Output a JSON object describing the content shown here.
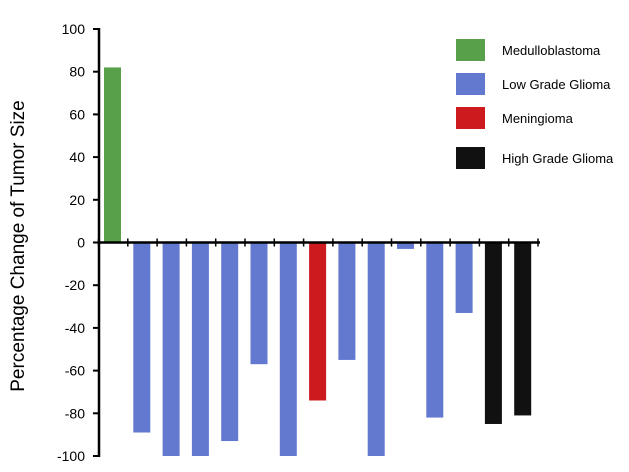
{
  "chart_data": {
    "type": "bar",
    "title": "",
    "xlabel": "",
    "ylabel": "Percentage Change of Tumor Size",
    "ylim": [
      -100,
      100
    ],
    "yticks": [
      100,
      80,
      60,
      40,
      20,
      0,
      -20,
      -40,
      -60,
      -80,
      -100
    ],
    "ytick_labels": [
      "100",
      "80",
      "60",
      "40",
      "20",
      "0",
      "-20",
      "-40",
      "-60",
      "-80",
      "-100"
    ],
    "grid": false,
    "legend_position": "top-right",
    "categories_colors": {
      "Medulloblastoma": "#58a04a",
      "Low Grade Glioma": "#6279cf",
      "Meningioma": "#cc1a1f",
      "High Grade Glioma": "#111111"
    },
    "legend": [
      "Medulloblastoma",
      "Low Grade Glioma",
      "Meningioma",
      "High Grade Glioma"
    ],
    "bars": [
      {
        "category": "Medulloblastoma",
        "value": 82
      },
      {
        "category": "Low Grade Glioma",
        "value": -89
      },
      {
        "category": "Low Grade Glioma",
        "value": -100
      },
      {
        "category": "Low Grade Glioma",
        "value": -100
      },
      {
        "category": "Low Grade Glioma",
        "value": -93
      },
      {
        "category": "Low Grade Glioma",
        "value": -57
      },
      {
        "category": "Low Grade Glioma",
        "value": -100
      },
      {
        "category": "Meningioma",
        "value": -74
      },
      {
        "category": "Low Grade Glioma",
        "value": -55
      },
      {
        "category": "Low Grade Glioma",
        "value": -100
      },
      {
        "category": "Low Grade Glioma",
        "value": -3
      },
      {
        "category": "Low Grade Glioma",
        "value": -82
      },
      {
        "category": "Low Grade Glioma",
        "value": -33
      },
      {
        "category": "High Grade Glioma",
        "value": -85
      },
      {
        "category": "High Grade Glioma",
        "value": -81
      }
    ]
  }
}
